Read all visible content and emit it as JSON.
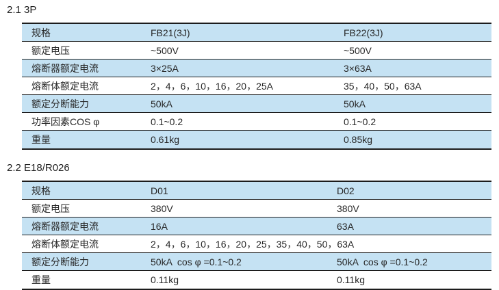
{
  "colors": {
    "background": "#ffffff",
    "row_highlight": "#c5e2f3",
    "border": "#1c1c1c",
    "text": "#262626"
  },
  "sections": [
    {
      "title": "2.1 3P",
      "table": {
        "rows": [
          {
            "label": "规格",
            "values": [
              "FB21(3J)",
              "FB22(3J)"
            ],
            "highlight": true
          },
          {
            "label": "额定电压",
            "values": [
              "~500V",
              "~500V"
            ],
            "highlight": false
          },
          {
            "label": "熔断器额定电流",
            "values": [
              "3×25A",
              "3×63A"
            ],
            "highlight": true
          },
          {
            "label": "熔断体额定电流",
            "values": [
              "2，4，6，10，16，20，25A",
              "35，40，50，63A"
            ],
            "highlight": false
          },
          {
            "label": "额定分断能力",
            "values": [
              "50kA",
              "50kA"
            ],
            "highlight": true
          },
          {
            "label": "功率因素COS φ",
            "values": [
              "0.1~0.2",
              "0.1~0.2"
            ],
            "highlight": false
          },
          {
            "label": "重量",
            "values": [
              "0.61kg",
              "0.85kg"
            ],
            "highlight": true
          }
        ]
      }
    },
    {
      "title": "2.2 E18/R026",
      "table": {
        "rows": [
          {
            "label": "规格",
            "values": [
              "D01",
              "D02"
            ],
            "highlight": true
          },
          {
            "label": "额定电压",
            "values": [
              "380V",
              "380V"
            ],
            "highlight": false
          },
          {
            "label": "熔断器额定电流",
            "values": [
              "16A",
              "63A"
            ],
            "highlight": true
          },
          {
            "label": "熔断体额定电流",
            "values": [
              "2，4，6，10，16，20，25，35，40，50，63A"
            ],
            "highlight": false
          },
          {
            "label": "额定分断能力",
            "values": [
              "50kA  cos φ =0.1~0.2",
              "50kA  cos φ =0.1~0.2"
            ],
            "highlight": true
          },
          {
            "label": "重量",
            "values": [
              "0.11kg",
              "0.11kg"
            ],
            "highlight": false
          }
        ]
      }
    }
  ]
}
